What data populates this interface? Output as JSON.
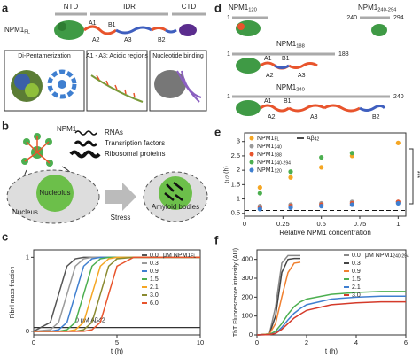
{
  "panel_a": {
    "label": "a",
    "domains": [
      "NTD",
      "IDR",
      "CTD"
    ],
    "protein": {
      "main": "NPM1",
      "sub": "FL"
    },
    "regions": [
      "A1",
      "B1",
      "A2",
      "A3",
      "B2"
    ],
    "insets": [
      "Di-Pentamerization",
      "A1 - A3: Acidic regions",
      "Nucleotide binding"
    ]
  },
  "panel_b": {
    "label": "b",
    "npm1": "NPM1",
    "partners": [
      "RNAs",
      "Transription factors",
      "Ribosomal proteins"
    ],
    "nucleolus": "Nucleolus",
    "nucleus": "Nucleus",
    "stress": "Stress",
    "amyloid_bodies": "Amyloid bodies"
  },
  "panel_d": {
    "label": "d",
    "constructs": [
      {
        "name": {
          "main": "NPM1",
          "sub": "120"
        },
        "start": "1"
      },
      {
        "name": {
          "main": "NPM1",
          "sub": "240-294"
        },
        "start": "240",
        "end": "294"
      },
      {
        "name": {
          "main": "NPM1",
          "sub": "188"
        },
        "start": "1",
        "end": "188",
        "regions": [
          "A1",
          "B1",
          "A2",
          "A3"
        ]
      },
      {
        "name": {
          "main": "NPM1",
          "sub": "240"
        },
        "start": "1",
        "end": "240",
        "regions": [
          "A1",
          "B1",
          "A2",
          "A3",
          "B2"
        ]
      }
    ]
  },
  "chart_data": [
    {
      "panel_label": "c",
      "type": "line",
      "xlabel": "t (h)",
      "ylabel": "Fibril mass fraction",
      "x": [
        0,
        1,
        1.5,
        2,
        2.5,
        3,
        3.5,
        4,
        4.5,
        5,
        6,
        8,
        10
      ],
      "legend_title": {
        "main": "μM NPM1",
        "sub": "FL"
      },
      "series": [
        {
          "name": "0.0",
          "color": "#555555",
          "values": [
            0,
            0.12,
            0.5,
            0.88,
            0.98,
            1,
            1,
            1,
            1,
            1,
            1,
            1,
            1
          ]
        },
        {
          "name": "0.3",
          "color": "#9a9a9a",
          "values": [
            0,
            0.02,
            0.12,
            0.5,
            0.88,
            0.98,
            1,
            1,
            1,
            1,
            1,
            1,
            1
          ]
        },
        {
          "name": "0.9",
          "color": "#3f7fd0",
          "values": [
            0,
            0,
            0.02,
            0.12,
            0.5,
            0.88,
            0.98,
            1,
            1,
            1,
            1,
            1,
            1
          ]
        },
        {
          "name": "1.5",
          "color": "#4caf50",
          "values": [
            0,
            0,
            0,
            0.02,
            0.12,
            0.5,
            0.88,
            0.98,
            1,
            1,
            1,
            1,
            1
          ]
        },
        {
          "name": "2.1",
          "color": "#f5a623",
          "values": [
            0,
            0,
            0,
            0,
            0.02,
            0.12,
            0.5,
            0.88,
            0.98,
            1,
            1,
            1,
            1
          ]
        },
        {
          "name": "3.0",
          "color": "#8a8a30",
          "values": [
            0,
            0,
            0,
            0,
            0,
            0.02,
            0.12,
            0.5,
            0.88,
            0.98,
            1,
            1,
            1
          ]
        },
        {
          "name": "6.0",
          "color": "#e8542c",
          "values": [
            0,
            0,
            0,
            0,
            0,
            0,
            0.02,
            0.12,
            0.5,
            0.88,
            1,
            1,
            1
          ]
        }
      ],
      "annotation": "0 μM Aβ42",
      "control_values": [
        0.05,
        0.05,
        0.05,
        0.05,
        0.05,
        0.05,
        0.05,
        0.05,
        0.05,
        0.05,
        0.05,
        0.05,
        0.05
      ],
      "xlim": [
        0,
        10
      ],
      "ylim": [
        -0.05,
        1.1
      ],
      "xticks": [
        0,
        5,
        10
      ],
      "yticks": [
        0,
        1
      ]
    },
    {
      "panel_label": "e",
      "type": "scatter",
      "xlabel": "Relative NPM1 concentration",
      "ylabel": {
        "main": "t",
        "sub": "1/2",
        "after": " (h)"
      },
      "x": [
        0.1,
        0.3,
        0.5,
        0.7,
        1
      ],
      "series": [
        {
          "name": {
            "main": "NPM1",
            "sub": "FL"
          },
          "color": "#f5a623",
          "values": [
            1.4,
            1.75,
            2.1,
            2.5,
            2.95
          ]
        },
        {
          "name": {
            "main": "NPM1",
            "sub": "240"
          },
          "color": "#9a9a9a",
          "values": [
            0.75,
            0.8,
            0.85,
            0.9,
            0.9
          ]
        },
        {
          "name": {
            "main": "NPM1",
            "sub": "188"
          },
          "color": "#e8542c",
          "values": [
            0.7,
            0.75,
            0.8,
            0.85,
            0.9
          ]
        },
        {
          "name": {
            "main": "NPM1",
            "sub": "240-294"
          },
          "color": "#4caf50",
          "values": [
            1.2,
            1.95,
            2.45,
            2.6,
            null
          ]
        },
        {
          "name": {
            "main": "NPM1",
            "sub": "120"
          },
          "color": "#3f7fd0",
          "values": [
            0.65,
            0.7,
            0.75,
            0.8,
            0.85
          ]
        }
      ],
      "reference": {
        "name": {
          "main": "Aβ",
          "sub": "42"
        },
        "value": 0.6
      },
      "significance": "***",
      "xlim": [
        0,
        1.05
      ],
      "ylim": [
        0.4,
        3.3
      ],
      "xticks": [
        0,
        0.25,
        0.5,
        0.75,
        1
      ],
      "yticks": [
        0.5,
        1,
        1.5,
        2,
        2.5,
        3
      ]
    },
    {
      "panel_label": "f",
      "type": "line",
      "xlabel": "t (h)",
      "ylabel": "ThT Fluorescence intensity (AU)",
      "x": [
        0,
        0.5,
        0.75,
        1,
        1.25,
        1.5,
        1.75,
        2,
        3,
        4,
        5,
        6
      ],
      "legend_title": {
        "main": "μM NPM1",
        "sub": "240-294"
      },
      "series": [
        {
          "name": "0.0",
          "color": "#888888",
          "values": [
            0,
            5,
            150,
            380,
            420,
            420,
            420,
            null,
            null,
            null,
            null,
            null
          ]
        },
        {
          "name": "0.3",
          "color": "#444444",
          "values": [
            0,
            5,
            100,
            330,
            400,
            405,
            405,
            null,
            null,
            null,
            null,
            null
          ]
        },
        {
          "name": "0.9",
          "color": "#f08030",
          "values": [
            0,
            5,
            60,
            200,
            330,
            380,
            385,
            null,
            null,
            null,
            null,
            null
          ]
        },
        {
          "name": "1.5",
          "color": "#4caf50",
          "values": [
            0,
            3,
            20,
            60,
            110,
            150,
            175,
            190,
            215,
            225,
            230,
            230
          ]
        },
        {
          "name": "2.1",
          "color": "#3f7fd0",
          "values": [
            0,
            2,
            10,
            40,
            80,
            115,
            140,
            160,
            190,
            200,
            205,
            205
          ]
        },
        {
          "name": "3.0",
          "color": "#d43a2a",
          "values": [
            0,
            2,
            8,
            30,
            60,
            90,
            110,
            130,
            160,
            170,
            175,
            175
          ]
        }
      ],
      "xlim": [
        0,
        6
      ],
      "ylim": [
        0,
        450
      ],
      "xticks": [
        0,
        2,
        4,
        6
      ],
      "yticks": [
        0,
        100,
        200,
        300,
        400
      ]
    }
  ]
}
